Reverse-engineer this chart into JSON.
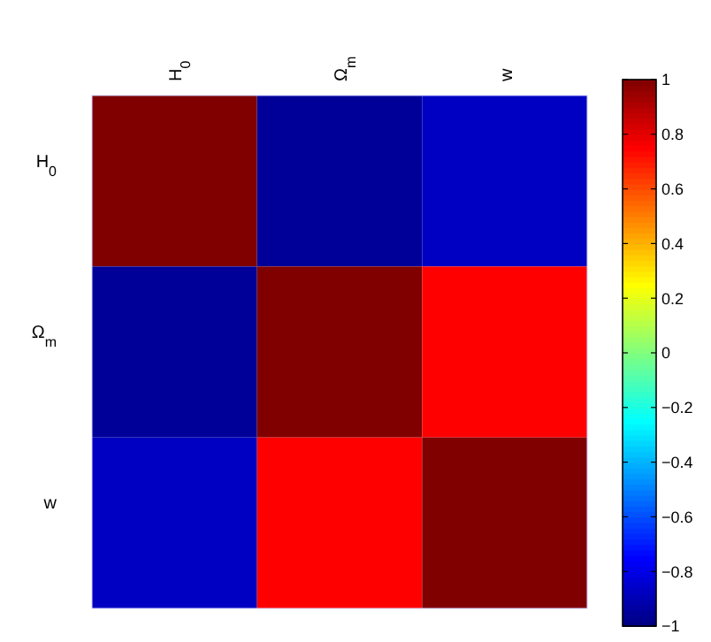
{
  "chart_data": {
    "type": "heatmap",
    "categories": [
      "H$_{0}$",
      "Ω$_{m}$",
      "w"
    ],
    "y_categories": [
      "H$_{0}$",
      "Ω$_{m}$",
      "w"
    ],
    "cells": [
      [
        1,
        -0.95,
        -0.87
      ],
      [
        -0.95,
        1,
        0.75
      ],
      [
        -0.87,
        0.75,
        1
      ]
    ],
    "clim": [
      -1,
      1
    ],
    "cticks": [
      -1,
      -0.8,
      -0.6,
      -0.4,
      -0.2,
      0,
      0.2,
      0.4,
      0.6,
      0.8,
      1
    ]
  }
}
